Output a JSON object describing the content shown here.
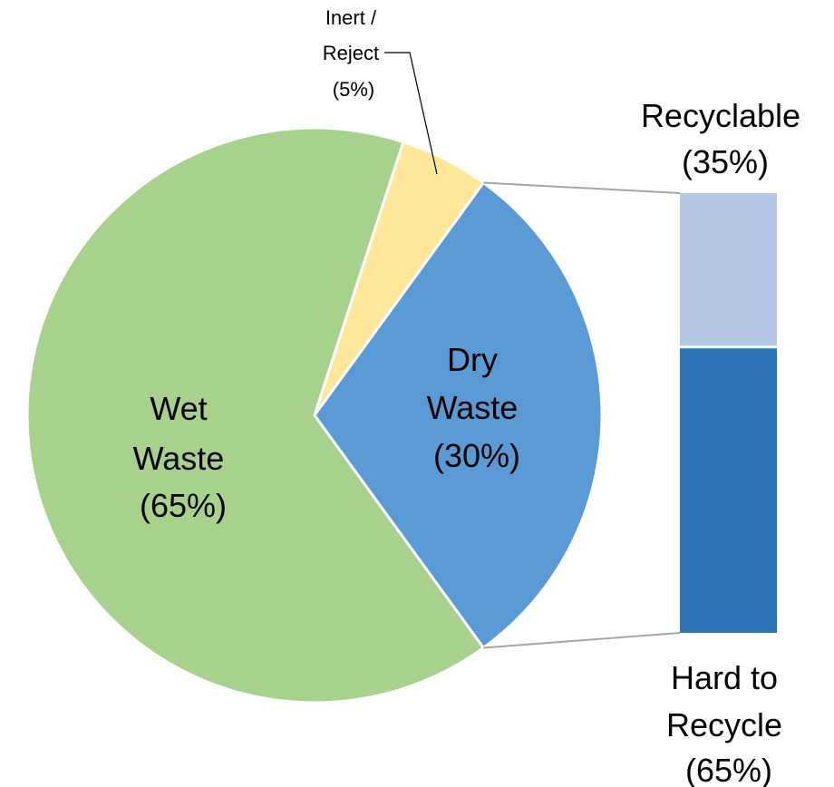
{
  "chart_data": {
    "type": "pie",
    "title": "",
    "pie": {
      "slices": [
        {
          "label": [
            "Wet",
            "Waste",
            "(65%)"
          ],
          "value": 65,
          "color": "#a9d18e"
        },
        {
          "label": [
            "Inert /",
            "Reject",
            "(5%)"
          ],
          "value": 5,
          "color": "#ffe699"
        },
        {
          "label": [
            "Dry",
            "Waste",
            "(30%)"
          ],
          "value": 30,
          "color": "#5b9bd5"
        }
      ],
      "exploded_slice": "Dry Waste"
    },
    "breakdown_bar": {
      "of": "Dry Waste",
      "segments": [
        {
          "label": [
            "Recyclable",
            "(35%)"
          ],
          "value": 35,
          "color": "#b4c7e7"
        },
        {
          "label": [
            "Hard to",
            "Recycle",
            "(65%)"
          ],
          "value": 65,
          "color": "#2e75b6"
        }
      ]
    }
  }
}
